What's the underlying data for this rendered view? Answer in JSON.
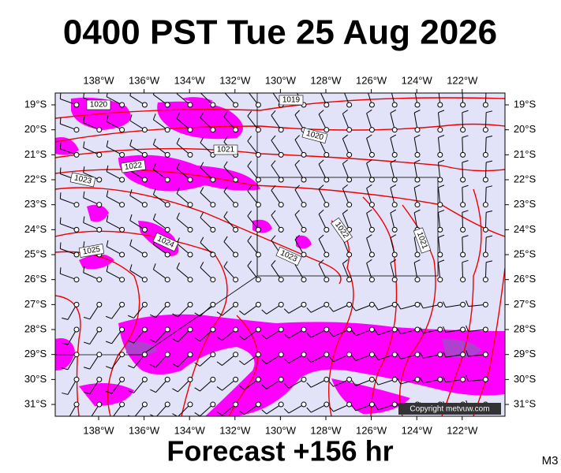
{
  "header": {
    "title": "0400 PST Tue 25 Aug 2026"
  },
  "map": {
    "lon_labels": [
      "138°W",
      "136°W",
      "134°W",
      "132°W",
      "130°W",
      "128°W",
      "126°W",
      "124°W",
      "122°W"
    ],
    "lat_labels": [
      "19°S",
      "20°S",
      "21°S",
      "22°S",
      "23°S",
      "24°S",
      "25°S",
      "26°S",
      "27°S",
      "28°S",
      "29°S",
      "30°S",
      "31°S"
    ],
    "isobar_labels": [
      "1020",
      "1019",
      "1020",
      "1021",
      "1022",
      "1023",
      "1024",
      "1025",
      "1023",
      "1022",
      "1021"
    ],
    "copyright": "Copyright metvuw.com"
  },
  "footer": {
    "forecast": "Forecast +156 hr",
    "model": "M3"
  }
}
